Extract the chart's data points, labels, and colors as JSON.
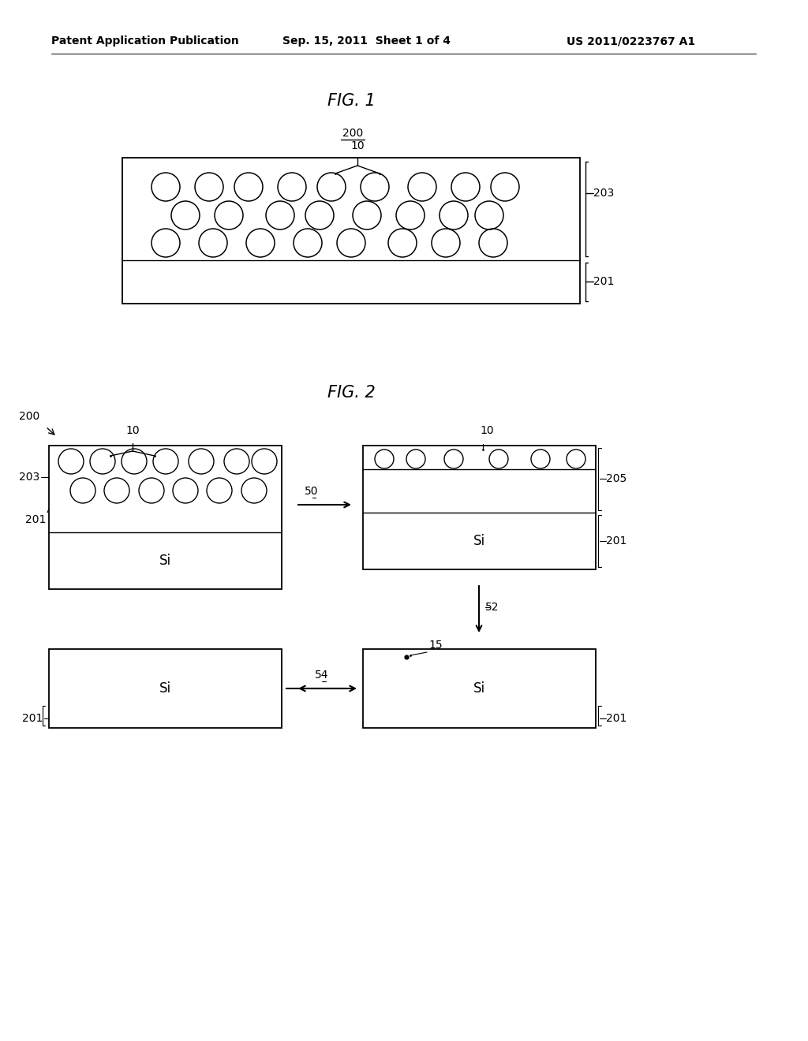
{
  "bg_color": "#ffffff",
  "header_text": "Patent Application Publication",
  "header_date": "Sep. 15, 2011  Sheet 1 of 4",
  "header_patent": "US 2011/0223767 A1",
  "fig1_title": "FIG. 1",
  "fig2_title": "FIG. 2",
  "label_200_fig1": "200",
  "label_10_fig1": "10",
  "label_203_fig1": "203",
  "label_201_fig1": "201",
  "label_200_fig2": "200",
  "label_10_fig2_left": "10",
  "label_203_fig2": "203",
  "label_201_fig2_left": "201",
  "label_Si_fig2_left": "Si",
  "label_50": "50",
  "label_10_fig2_right_top": "10",
  "label_205": "205",
  "label_201_fig2_right_top": "201",
  "label_Si_fig2_right_top": "Si",
  "label_52": "52",
  "label_15": "15",
  "label_201_fig2_right_bot": "201",
  "label_Si_fig2_right_bot": "Si",
  "label_54": "54",
  "label_Si_fig2_left_bot": "Si",
  "label_201_fig2_left_bot": "201"
}
